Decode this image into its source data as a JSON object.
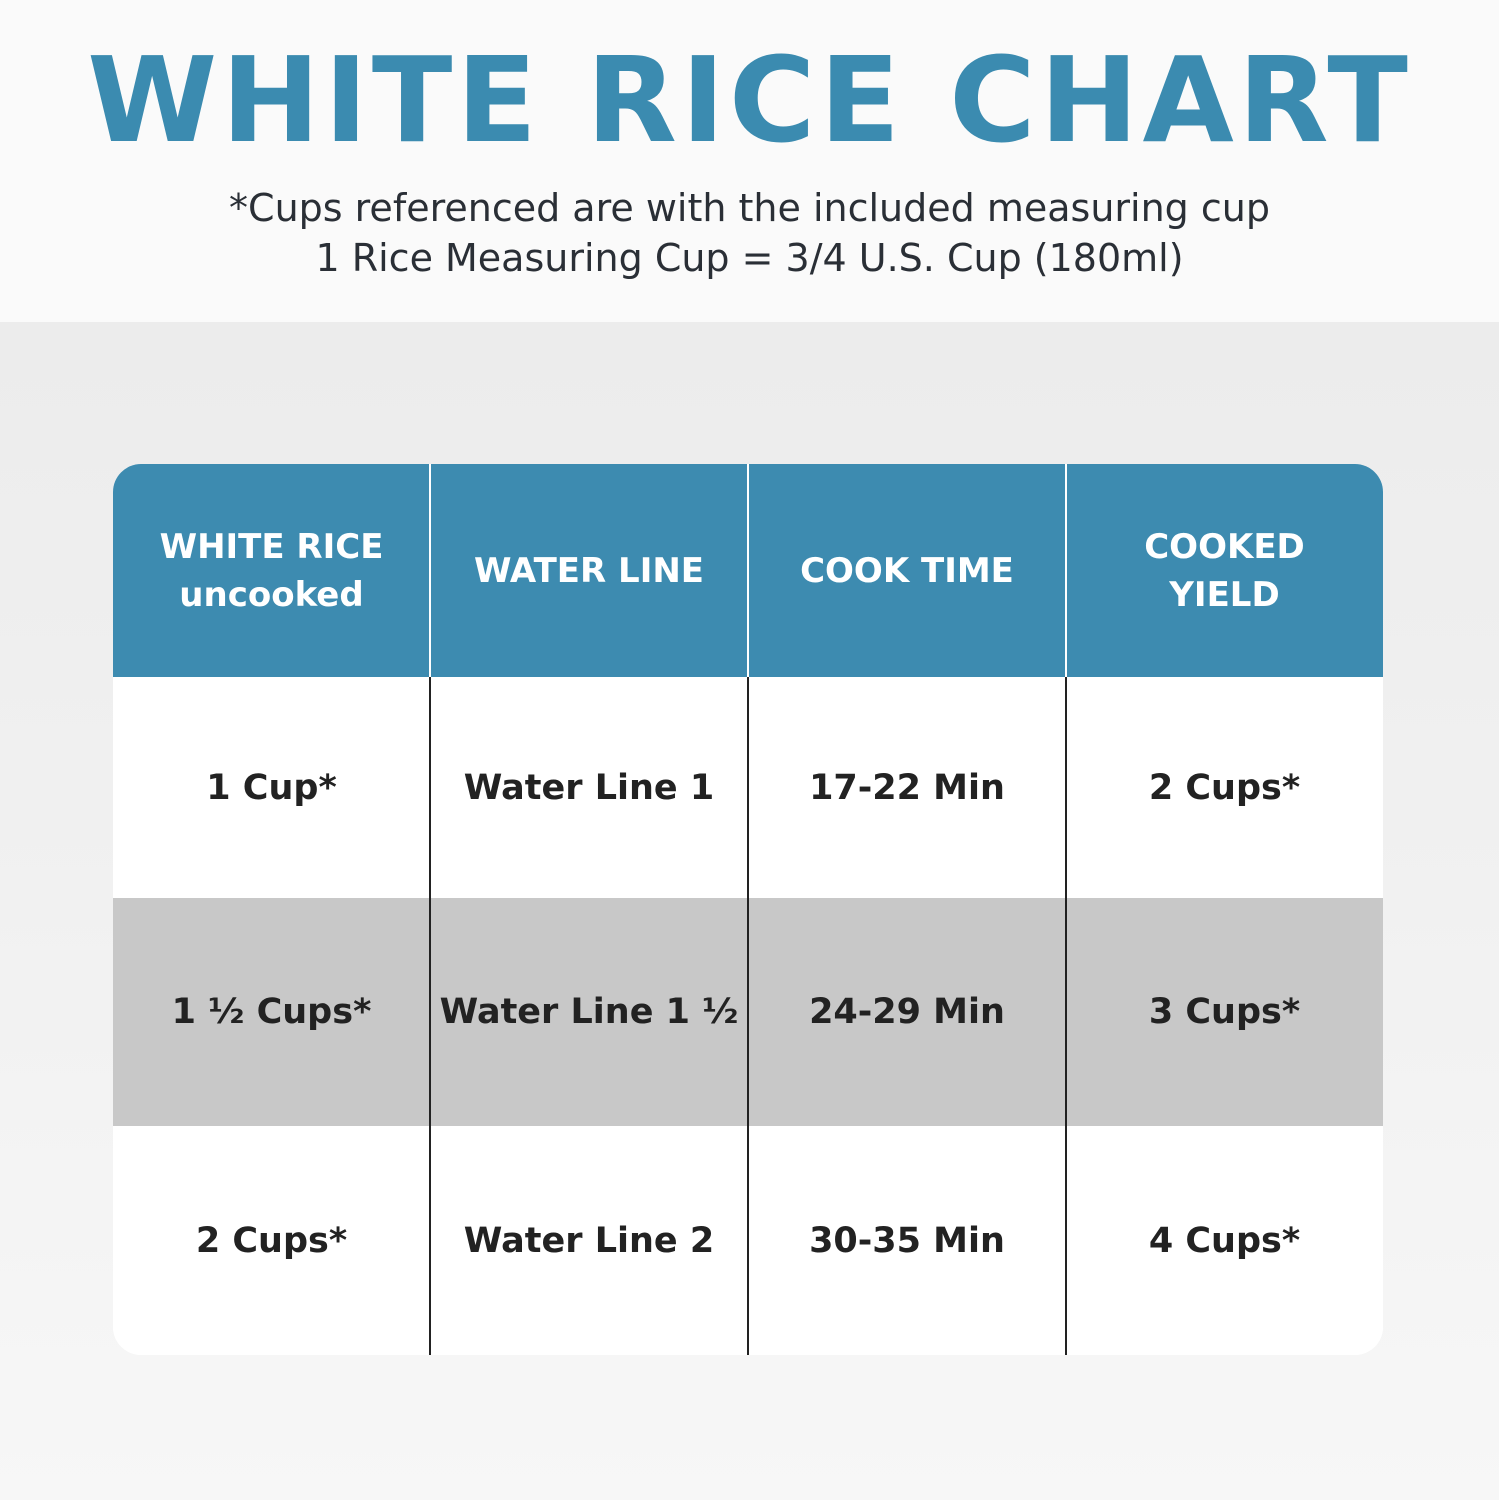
{
  "title": "WHITE RICE CHART",
  "subtitle_lines": [
    "*Cups referenced are with the included measuring cup",
    "1 Rice Measuring Cup = 3/4 U.S. Cup (180ml)"
  ],
  "colors": {
    "accent": "#3d8bb0",
    "row_alt": "#c8c8c8"
  },
  "table": {
    "headers": [
      [
        "WHITE RICE",
        "uncooked"
      ],
      [
        "WATER LINE"
      ],
      [
        "COOK TIME"
      ],
      [
        "COOKED",
        "YIELD"
      ]
    ],
    "rows": [
      [
        "1 Cup*",
        "Water Line 1",
        "17-22 Min",
        "2 Cups*"
      ],
      [
        "1 ½ Cups*",
        "Water Line 1 ½",
        "24-29 Min",
        "3 Cups*"
      ],
      [
        "2 Cups*",
        "Water Line 2",
        "30-35 Min",
        "4 Cups*"
      ]
    ]
  }
}
